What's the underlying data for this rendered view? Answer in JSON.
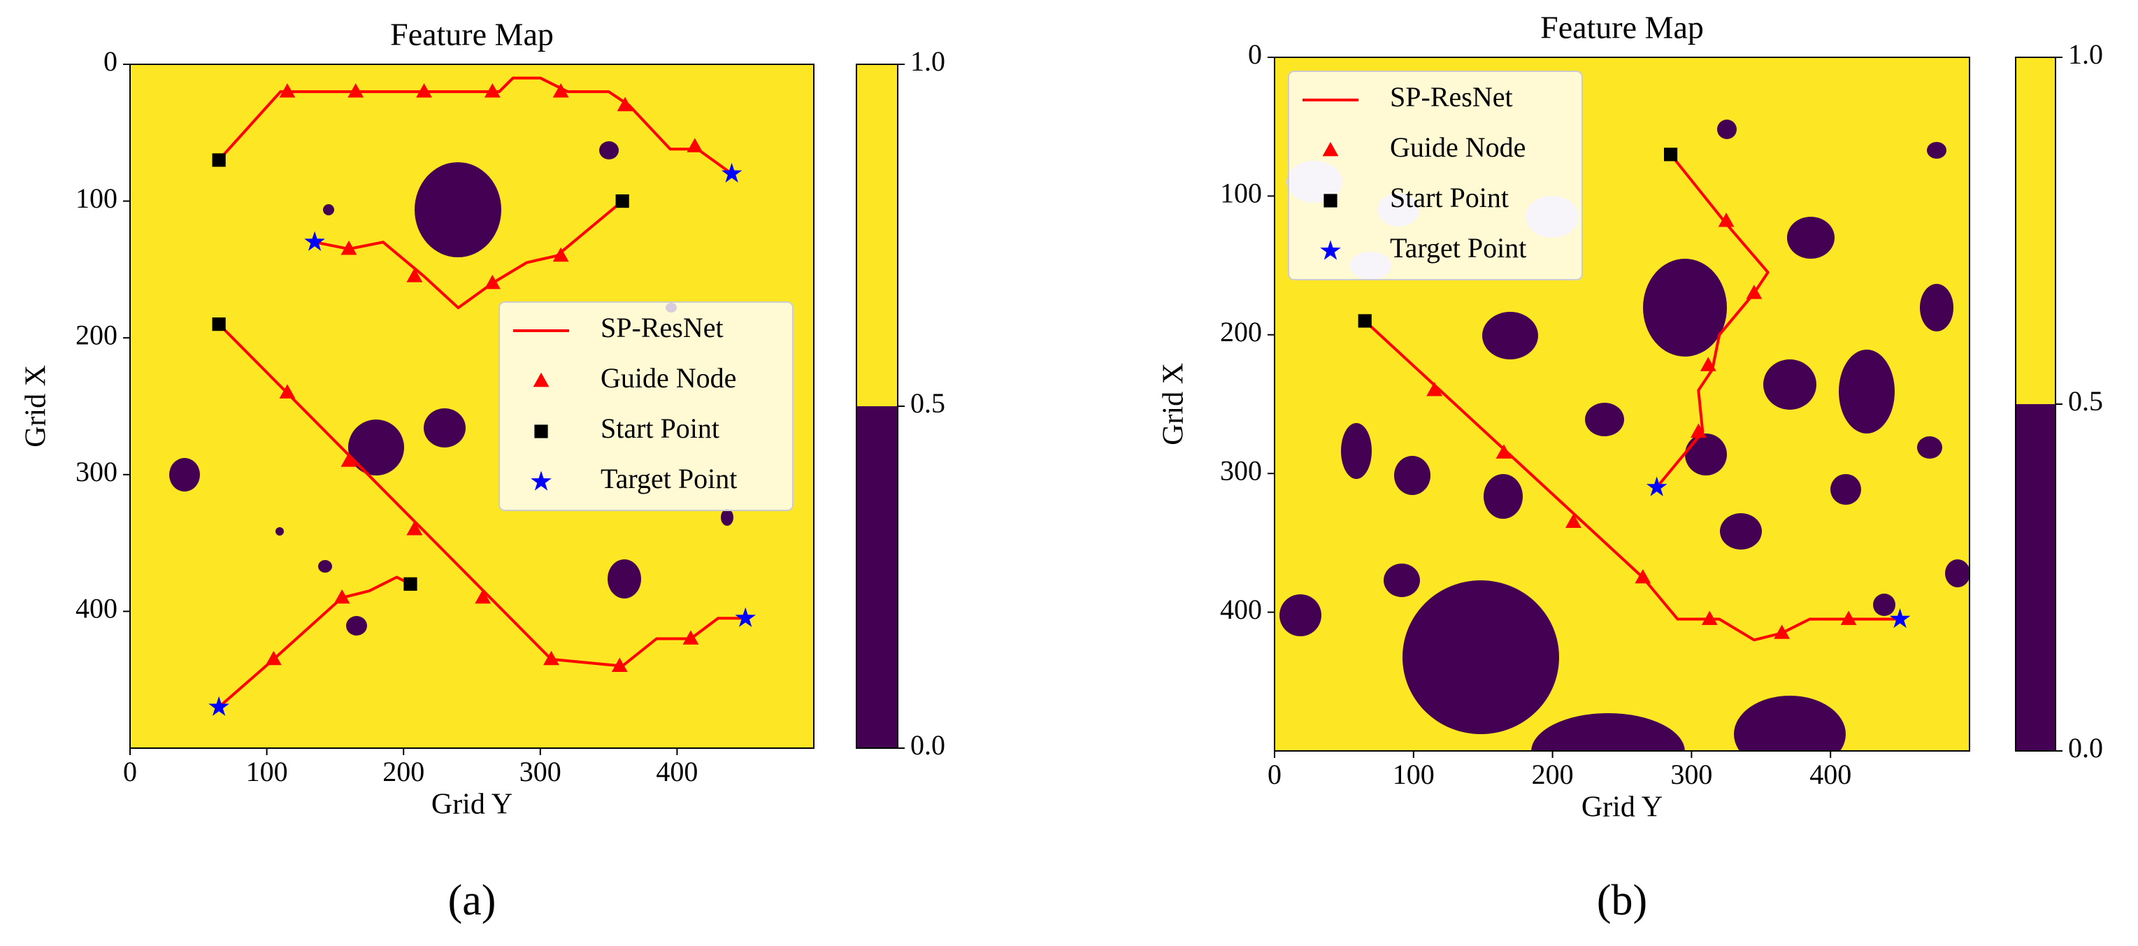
{
  "chart_data": [
    {
      "type": "scatter",
      "title": "Feature Map",
      "xlabel": "Grid Y",
      "ylabel": "Grid X",
      "panel_label": "(a)",
      "xlim": [
        0,
        500
      ],
      "ylim": [
        500,
        0
      ],
      "xticks": [
        0,
        100,
        200,
        300,
        400
      ],
      "yticks": [
        0,
        100,
        200,
        300,
        400
      ],
      "legend": "center right",
      "colorbar": {
        "lim": [
          0,
          1
        ],
        "ticks": [
          {
            "value": 0,
            "label": "0.0"
          },
          0.5,
          {
            "value": 1,
            "label": "1.0"
          }
        ],
        "colors": [
          "#440154",
          "#fde725"
        ]
      },
      "series": [
        {
          "name": "SP-ResNet",
          "style": "line",
          "color": "#ff0000",
          "x": [
            65,
            110,
            270,
            280,
            300,
            320,
            350,
            365,
            395,
            415,
            440,
            null,
            360,
            312,
            290,
            265,
            240,
            215,
            185,
            160,
            135,
            null,
            65,
            308,
            360,
            385,
            410,
            430,
            450,
            null,
            205,
            195,
            175,
            155,
            105,
            65
          ],
          "values": [
            70,
            20,
            20,
            10,
            10,
            20,
            20,
            30,
            62,
            62,
            80,
            null,
            100,
            140,
            145,
            160,
            178,
            155,
            130,
            135,
            130,
            null,
            190,
            435,
            440,
            420,
            420,
            405,
            405,
            null,
            380,
            375,
            385,
            390,
            435,
            470
          ]
        },
        {
          "name": "Guide Node",
          "style": "triangle",
          "color": "#ff0000",
          "x": [
            115,
            165,
            215,
            265,
            315,
            362,
            413,
            315,
            265,
            208,
            160,
            115,
            160,
            208,
            258,
            308,
            358,
            410,
            105,
            155
          ],
          "values": [
            20,
            20,
            20,
            20,
            20,
            30,
            60,
            140,
            160,
            155,
            135,
            240,
            290,
            340,
            390,
            435,
            440,
            420,
            435,
            390
          ]
        },
        {
          "name": "Start Point",
          "style": "square",
          "color": "#000000",
          "x": [
            65,
            360,
            65,
            205
          ],
          "values": [
            70,
            100,
            190,
            380
          ]
        },
        {
          "name": "Target Point",
          "style": "star",
          "color": "#0000ff",
          "x": [
            440,
            135,
            450,
            65
          ],
          "values": [
            80,
            130,
            405,
            470
          ]
        }
      ]
    },
    {
      "type": "scatter",
      "title": "Feature Map",
      "xlabel": "Grid Y",
      "ylabel": "Grid X",
      "panel_label": "(b)",
      "xlim": [
        0,
        500
      ],
      "ylim": [
        500,
        0
      ],
      "xticks": [
        0,
        100,
        200,
        300,
        400
      ],
      "yticks": [
        0,
        100,
        200,
        300,
        400
      ],
      "legend": "upper left",
      "colorbar": {
        "lim": [
          0,
          1
        ],
        "ticks": [
          {
            "value": 0,
            "label": "0.0"
          },
          0.5,
          {
            "value": 1,
            "label": "1.0"
          }
        ],
        "colors": [
          "#440154",
          "#fde725"
        ]
      },
      "series": [
        {
          "name": "SP-ResNet",
          "style": "line",
          "color": "#ff0000",
          "x": [
            285,
            325,
            355,
            345,
            320,
            315,
            305,
            308,
            275,
            null,
            65,
            265,
            290,
            320,
            345,
            365,
            385,
            430,
            450
          ],
          "values": [
            70,
            120,
            155,
            170,
            200,
            225,
            240,
            270,
            310,
            null,
            190,
            375,
            405,
            405,
            420,
            415,
            405,
            405,
            405
          ]
        },
        {
          "name": "Guide Node",
          "style": "triangle",
          "color": "#ff0000",
          "x": [
            325,
            345,
            312,
            305,
            115,
            165,
            215,
            265,
            313,
            365,
            413
          ],
          "values": [
            118,
            170,
            222,
            270,
            240,
            285,
            335,
            375,
            405,
            415,
            405
          ]
        },
        {
          "name": "Start Point",
          "style": "square",
          "color": "#000000",
          "x": [
            285,
            65
          ],
          "values": [
            70,
            190
          ]
        },
        {
          "name": "Target Point",
          "style": "star",
          "color": "#0000ff",
          "x": [
            275,
            450
          ],
          "values": [
            310,
            405
          ]
        }
      ]
    }
  ]
}
